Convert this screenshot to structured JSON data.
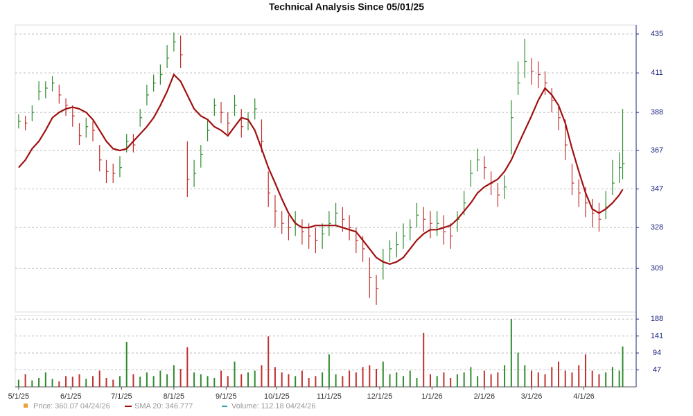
{
  "chart_data": {
    "type": "ohlc",
    "title": "Technical Analysis Since 05/01/25",
    "x": [
      "2025-05-01",
      "2025-05-05",
      "2025-05-09",
      "2025-05-13",
      "2025-05-17",
      "2025-05-21",
      "2025-05-25",
      "2025-05-29",
      "2025-06-02",
      "2025-06-06",
      "2025-06-10",
      "2025-06-14",
      "2025-06-18",
      "2025-06-22",
      "2025-06-26",
      "2025-06-30",
      "2025-07-04",
      "2025-07-08",
      "2025-07-12",
      "2025-07-16",
      "2025-07-20",
      "2025-07-24",
      "2025-07-28",
      "2025-08-01",
      "2025-08-05",
      "2025-08-09",
      "2025-08-13",
      "2025-08-17",
      "2025-08-21",
      "2025-08-25",
      "2025-08-29",
      "2025-09-02",
      "2025-09-06",
      "2025-09-10",
      "2025-09-14",
      "2025-09-18",
      "2025-09-22",
      "2025-09-26",
      "2025-09-30",
      "2025-10-04",
      "2025-10-08",
      "2025-10-12",
      "2025-10-16",
      "2025-10-20",
      "2025-10-24",
      "2025-10-28",
      "2025-11-01",
      "2025-11-05",
      "2025-11-09",
      "2025-11-13",
      "2025-11-17",
      "2025-11-21",
      "2025-11-25",
      "2025-11-29",
      "2025-12-03",
      "2025-12-07",
      "2025-12-11",
      "2025-12-15",
      "2025-12-19",
      "2025-12-23",
      "2025-12-27",
      "2025-12-31",
      "2026-01-04",
      "2026-01-08",
      "2026-01-12",
      "2026-01-16",
      "2026-01-20",
      "2026-01-24",
      "2026-01-28",
      "2026-02-01",
      "2026-02-05",
      "2026-02-09",
      "2026-02-13",
      "2026-02-17",
      "2026-02-21",
      "2026-02-25",
      "2026-03-01",
      "2026-03-05",
      "2026-03-09",
      "2026-03-13",
      "2026-03-17",
      "2026-03-21",
      "2026-03-25",
      "2026-03-29",
      "2026-04-02",
      "2026-04-06",
      "2026-04-10",
      "2026-04-14",
      "2026-04-18",
      "2026-04-22",
      "2026-04-24"
    ],
    "xlim": [
      "2025-04-29",
      "2026-05-02"
    ],
    "xticks": [
      {
        "value": "2025-05-01",
        "label": "5/1/25"
      },
      {
        "value": "2025-06-01",
        "label": "6/1/25"
      },
      {
        "value": "2025-07-01",
        "label": "7/1/25"
      },
      {
        "value": "2025-08-01",
        "label": "8/1/25"
      },
      {
        "value": "2025-09-01",
        "label": "9/1/25"
      },
      {
        "value": "2025-10-01",
        "label": "10/1/25"
      },
      {
        "value": "2025-11-01",
        "label": "11/1/25"
      },
      {
        "value": "2025-12-01",
        "label": "12/1/25"
      },
      {
        "value": "2026-01-01",
        "label": "1/1/26"
      },
      {
        "value": "2026-02-01",
        "label": "2/1/26"
      },
      {
        "value": "2026-03-01",
        "label": "3/1/26"
      },
      {
        "value": "2026-04-01",
        "label": "4/1/26"
      }
    ],
    "ylim": [
      290,
      439
    ],
    "yticks": [
      309,
      328,
      347,
      367,
      388,
      411,
      435
    ],
    "ylog": true,
    "grid": true,
    "up_color": "#2e8b2e",
    "down_color": "#c0302e",
    "y2lim": [
      0,
      198
    ],
    "y2ticks": [
      47,
      94,
      141,
      188
    ],
    "series": [
      {
        "name": "Price: 360.07  04/24/26",
        "color": "#e8a33a",
        "values": [
          383,
          382,
          388,
          400,
          402,
          405,
          398,
          392,
          386,
          375,
          380,
          378,
          362,
          356,
          355,
          358,
          372,
          370,
          385,
          398,
          405,
          410,
          420,
          430,
          422,
          352,
          355,
          365,
          378,
          392,
          388,
          382,
          392,
          380,
          383,
          390,
          372,
          345,
          336,
          330,
          328,
          330,
          326,
          324,
          322,
          325,
          330,
          335,
          332,
          328,
          322,
          318,
          305,
          300,
          312,
          318,
          320,
          324,
          328,
          334,
          332,
          330,
          330,
          326,
          324,
          332,
          340,
          355,
          362,
          358,
          350,
          344,
          348,
          385,
          405,
          418,
          412,
          410,
          405,
          395,
          385,
          370,
          350,
          345,
          340,
          335,
          332,
          338,
          350,
          358,
          360.07
        ],
        "high": [
          387,
          386,
          392,
          406,
          406,
          409,
          404,
          396,
          392,
          382,
          385,
          383,
          370,
          362,
          360,
          364,
          376,
          376,
          390,
          404,
          410,
          416,
          428,
          436,
          434,
          372,
          362,
          370,
          384,
          396,
          394,
          388,
          398,
          390,
          388,
          396,
          384,
          356,
          344,
          336,
          334,
          336,
          332,
          330,
          328,
          330,
          336,
          340,
          338,
          334,
          328,
          324,
          314,
          306,
          318,
          322,
          326,
          330,
          332,
          340,
          338,
          336,
          336,
          334,
          330,
          336,
          346,
          362,
          368,
          364,
          356,
          350,
          354,
          395,
          418,
          432,
          420,
          418,
          412,
          402,
          392,
          384,
          360,
          352,
          348,
          342,
          340,
          346,
          362,
          366,
          390
        ],
        "low": [
          379,
          378,
          383,
          395,
          396,
          400,
          393,
          386,
          380,
          370,
          374,
          372,
          356,
          350,
          350,
          353,
          366,
          366,
          380,
          392,
          400,
          404,
          414,
          424,
          414,
          343,
          348,
          358,
          372,
          386,
          382,
          376,
          386,
          374,
          378,
          384,
          366,
          338,
          328,
          325,
          322,
          324,
          320,
          318,
          316,
          318,
          324,
          329,
          326,
          322,
          316,
          312,
          296,
          293,
          304,
          312,
          314,
          318,
          322,
          328,
          326,
          323,
          324,
          320,
          318,
          326,
          334,
          348,
          356,
          352,
          344,
          338,
          342,
          365,
          398,
          408,
          404,
          402,
          398,
          388,
          378,
          362,
          344,
          338,
          333,
          328,
          326,
          332,
          344,
          350,
          352
        ]
      },
      {
        "name": "SMA 20: 346.777",
        "color": "#a01010",
        "values": [
          358,
          362,
          368,
          372,
          378,
          385,
          388,
          390,
          391,
          390,
          388,
          384,
          378,
          372,
          368,
          367,
          368,
          372,
          376,
          380,
          385,
          392,
          400,
          410,
          406,
          398,
          390,
          386,
          384,
          380,
          378,
          375,
          380,
          385,
          384,
          378,
          368,
          358,
          350,
          342,
          335,
          330,
          328,
          328,
          329,
          329,
          329,
          329,
          328,
          327,
          326,
          322,
          318,
          314,
          312,
          311,
          312,
          314,
          318,
          322,
          325,
          327,
          327,
          328,
          329,
          332,
          336,
          340,
          345,
          348,
          350,
          352,
          356,
          362,
          370,
          378,
          386,
          395,
          402,
          398,
          392,
          382,
          368,
          356,
          345,
          337,
          335,
          337,
          340,
          344,
          346.777
        ]
      },
      {
        "name": "Volume: 112.18  04/24/26",
        "color": "#2aa5a5",
        "axis": "y2",
        "values": [
          20,
          35,
          18,
          25,
          40,
          22,
          15,
          30,
          28,
          35,
          22,
          30,
          45,
          25,
          20,
          30,
          125,
          35,
          28,
          40,
          30,
          45,
          35,
          60,
          50,
          110,
          40,
          35,
          30,
          25,
          45,
          30,
          70,
          35,
          40,
          45,
          60,
          140,
          55,
          40,
          35,
          30,
          45,
          25,
          30,
          40,
          90,
          35,
          30,
          45,
          40,
          55,
          60,
          50,
          70,
          35,
          40,
          30,
          45,
          25,
          150,
          35,
          30,
          40,
          25,
          35,
          40,
          55,
          30,
          45,
          35,
          40,
          60,
          188,
          95,
          60,
          45,
          40,
          35,
          55,
          70,
          45,
          40,
          60,
          90,
          45,
          35,
          40,
          55,
          45,
          112.18
        ]
      }
    ]
  }
}
